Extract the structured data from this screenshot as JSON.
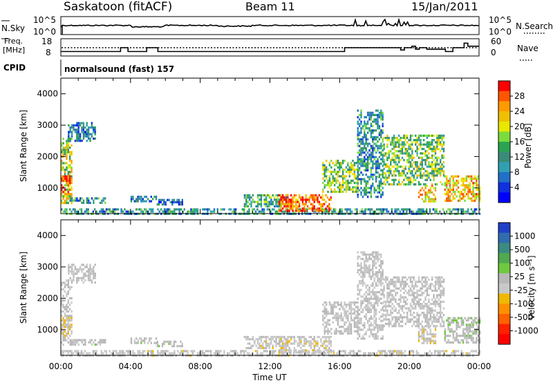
{
  "header": {
    "station": "Saskatoon (fitACF)",
    "beam": "Beam 11",
    "date": "15/Jan/2011"
  },
  "noise_panel": {
    "left_label": "N.Sky",
    "left_ticks": [
      "10^5",
      "10^0"
    ],
    "right_ticks": [
      "10^5",
      "10^0"
    ],
    "right_label": "N.Search",
    "right_label_style": "dotted"
  },
  "freq_panel": {
    "left_label_1": "Freq.",
    "left_label_2": "[MHz]",
    "left_ticks": [
      "18",
      "8"
    ],
    "right_ticks": [
      "60",
      "0"
    ],
    "right_label": "Nave",
    "right_label_style": "dotted",
    "freq_mhz": [
      10.5,
      10.5,
      10.5,
      10.5,
      10.5,
      10.5,
      10.5,
      10.5,
      10.5,
      10.5,
      10.5,
      10.5,
      10.5,
      10.5,
      10.5,
      10.5,
      13,
      13,
      10.5,
      10.5,
      10.5,
      10.5,
      10.5,
      13,
      13,
      13,
      10.5,
      10.5,
      10.5,
      10.5,
      10.5,
      10.5,
      10.5,
      10.5,
      10.5,
      10.5,
      10.5,
      10.5,
      10.5,
      10.5,
      10.5,
      10.5,
      10.5,
      10.5,
      10.5,
      10.5,
      10.5,
      10.5,
      10.5,
      10.5,
      10.5,
      10.5,
      10.5,
      10.5,
      10.5,
      10.5,
      10.5,
      10.5,
      10.5,
      10.5,
      10.5,
      10.5,
      10.5,
      10.5,
      10.5,
      10.5,
      10.5,
      10.5,
      10.5,
      10.5,
      10.5,
      10.5,
      10.5,
      10.5,
      10.5,
      10.5,
      13,
      13,
      13,
      13,
      13,
      13,
      13,
      13,
      13,
      13,
      13,
      13,
      13,
      13,
      13,
      11.5,
      13,
      13,
      14,
      12,
      13,
      13,
      12,
      12,
      12,
      12,
      12,
      10.5,
      10.5,
      13,
      13,
      13,
      16,
      14,
      14,
      14
    ]
  },
  "cpid": {
    "label": "CPID",
    "program": "normalsound (fast) 157"
  },
  "power_panel": {
    "ylabel": "Slant Range [km]",
    "colorbar_label": "Power [dB]",
    "colorbar_ticks": [
      "28",
      "24",
      "20",
      "16",
      "12",
      "8",
      "4"
    ],
    "colorbar_colors": [
      "#ff0000",
      "#ff5500",
      "#ff9a00",
      "#f0c000",
      "#e8e800",
      "#7cdc3c",
      "#2aa450",
      "#3a8c78",
      "#30a0b0",
      "#2070c8",
      "#1030e0",
      "#0000ff"
    ]
  },
  "velocity_panel": {
    "ylabel": "Slant Range [km]",
    "colorbar_label": "Velocity [m s⁻¹]",
    "colorbar_ticks": [
      "1000",
      "500",
      "100",
      "25",
      "-25",
      "-100",
      "-500",
      "-1000"
    ],
    "colorbar_colors": [
      "#2040c8",
      "#306cb0",
      "#3a8c80",
      "#50a850",
      "#70c840",
      "#b8b8b8",
      "#c8c8c8",
      "#f0b800",
      "#ff9000",
      "#ff6000",
      "#ff2000",
      "#ff0000"
    ]
  },
  "xaxis": {
    "label": "Time UT",
    "ticks": [
      "00:00",
      "04:00",
      "08:00",
      "12:00",
      "16:00",
      "20:00",
      "00:00"
    ]
  },
  "chart_data": {
    "type": "heatmap",
    "title": "Saskatoon (fitACF)",
    "subtitle": "Beam 11",
    "xlabel": "Time UT",
    "ylabel": "Slant Range [km]",
    "xlim_hours": [
      0,
      24
    ],
    "ylim_km": [
      180,
      4500
    ],
    "y_ticks_km": [
      1000,
      2000,
      3000,
      4000
    ],
    "power_range_db": [
      0,
      30
    ],
    "velocity_range_ms": [
      -1000,
      1000
    ],
    "regions": [
      {
        "t0": 0.0,
        "t1": 0.6,
        "r0": 500,
        "r1": 2600,
        "power": 18,
        "velocity": 0
      },
      {
        "t0": 0.0,
        "t1": 0.6,
        "r0": 800,
        "r1": 1400,
        "power": 27,
        "velocity": -150
      },
      {
        "t0": 0.5,
        "t1": 2.5,
        "r0": 500,
        "r1": 700,
        "power": 10,
        "velocity": 60
      },
      {
        "t0": 0.4,
        "t1": 2.0,
        "r0": 2500,
        "r1": 3100,
        "power": 8,
        "velocity": 0
      },
      {
        "t0": 0.0,
        "t1": 24.0,
        "r0": 180,
        "r1": 350,
        "power": 10,
        "velocity": -60
      },
      {
        "t0": 4.0,
        "t1": 5.5,
        "r0": 600,
        "r1": 750,
        "power": 8,
        "velocity": 80
      },
      {
        "t0": 5.5,
        "t1": 7.0,
        "r0": 500,
        "r1": 650,
        "power": 6,
        "velocity": 60
      },
      {
        "t0": 10.5,
        "t1": 13.0,
        "r0": 400,
        "r1": 800,
        "power": 12,
        "velocity": -60
      },
      {
        "t0": 12.5,
        "t1": 15.5,
        "r0": 300,
        "r1": 800,
        "power": 27,
        "velocity": -80
      },
      {
        "t0": 15.0,
        "t1": 17.0,
        "r0": 900,
        "r1": 1900,
        "power": 16,
        "velocity": 0
      },
      {
        "t0": 17.0,
        "t1": 18.5,
        "r0": 700,
        "r1": 3500,
        "power": 10,
        "velocity": 0
      },
      {
        "t0": 18.5,
        "t1": 22.0,
        "r0": 1100,
        "r1": 2700,
        "power": 15,
        "velocity": 0
      },
      {
        "t0": 20.5,
        "t1": 21.5,
        "r0": 600,
        "r1": 1100,
        "power": 22,
        "velocity": -90
      },
      {
        "t0": 22.0,
        "t1": 24.0,
        "r0": 600,
        "r1": 1400,
        "power": 22,
        "velocity": 100
      }
    ]
  }
}
